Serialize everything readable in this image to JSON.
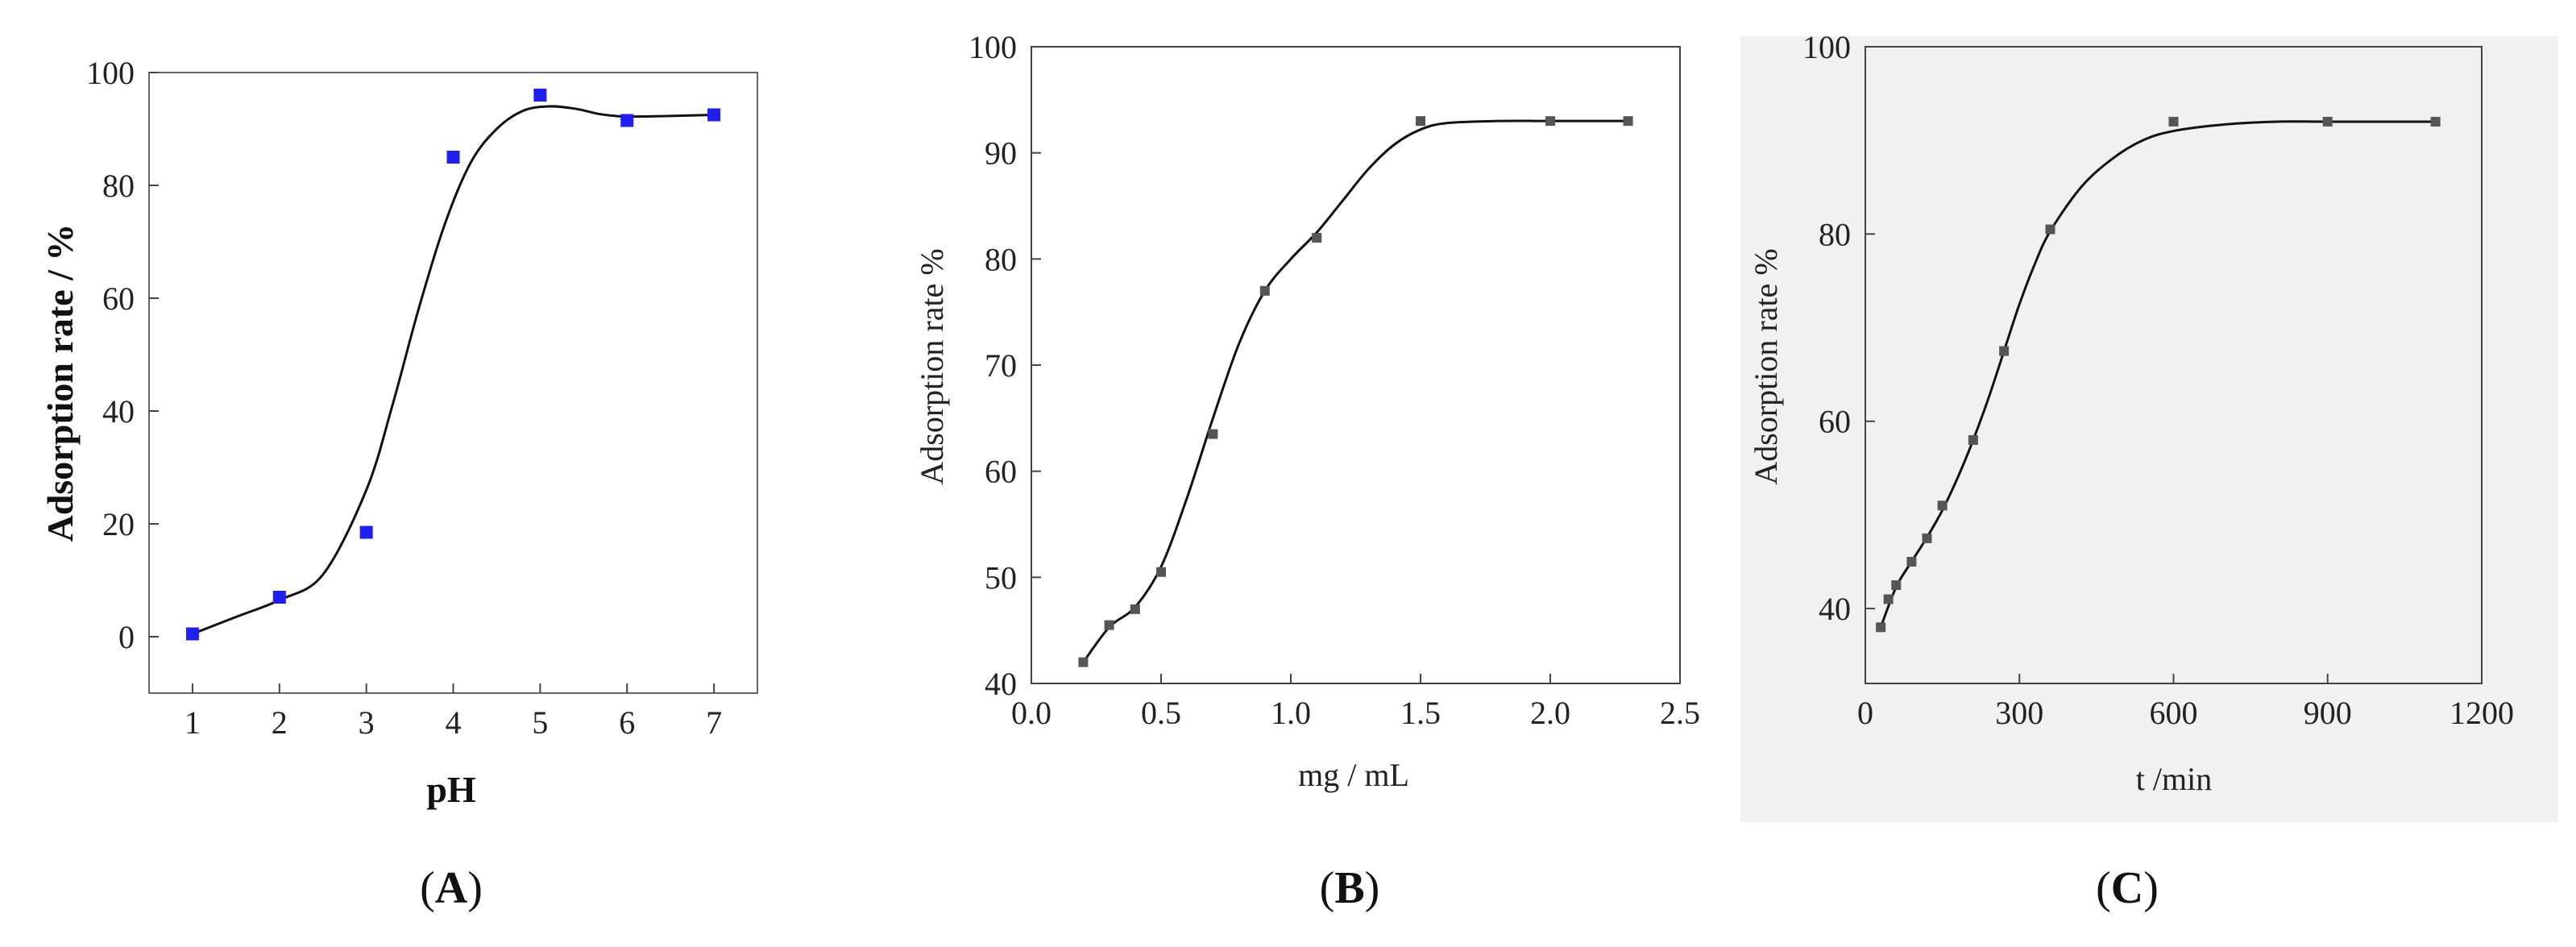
{
  "chart_data": [
    {
      "type": "scatter",
      "caption": "A",
      "xlabel": "pH",
      "ylabel": "Adsorption rate  / %",
      "xlim": [
        0.5,
        7.5
      ],
      "ylim": [
        -10,
        100
      ],
      "xticks": [
        1,
        2,
        3,
        4,
        5,
        6,
        7
      ],
      "yticks": [
        0,
        20,
        40,
        60,
        80,
        100
      ],
      "marker_color": "#1f1ff0",
      "points": {
        "x": [
          1,
          2,
          3,
          4,
          5,
          6,
          7
        ],
        "y": [
          0.5,
          7,
          18.5,
          85,
          96,
          91.5,
          92.5
        ]
      },
      "fit": {
        "x": [
          1,
          1.5,
          2,
          2.5,
          3,
          3.3,
          3.6,
          3.9,
          4.2,
          4.5,
          4.8,
          5.1,
          5.4,
          5.7,
          6,
          6.5,
          7
        ],
        "y": [
          0.5,
          3.5,
          6.5,
          11,
          26,
          41,
          58,
          73,
          84,
          90,
          93.2,
          94,
          93.6,
          92.6,
          92.2,
          92.3,
          92.5
        ]
      }
    },
    {
      "type": "scatter",
      "caption": "B",
      "xlabel": "mg / mL",
      "ylabel": "Adsorption rate %",
      "xlim": [
        0,
        2.5
      ],
      "ylim": [
        40,
        100
      ],
      "xticks": [
        "0.0",
        "0.5",
        "1.0",
        "1.5",
        "2.0",
        "2.5"
      ],
      "yticks": [
        40,
        50,
        60,
        70,
        80,
        90,
        100
      ],
      "marker_color": "#555555",
      "points": {
        "x": [
          0.2,
          0.3,
          0.4,
          0.5,
          0.7,
          0.9,
          1.1,
          1.5,
          2.0,
          2.3
        ],
        "y": [
          42,
          45.5,
          47,
          50.5,
          63.5,
          77,
          82,
          93,
          93,
          93
        ]
      },
      "fit": {
        "x": [
          0.2,
          0.3,
          0.4,
          0.5,
          0.6,
          0.7,
          0.8,
          0.9,
          1.0,
          1.1,
          1.2,
          1.3,
          1.4,
          1.5,
          1.6,
          1.8,
          2.0,
          2.3
        ],
        "y": [
          42,
          45.3,
          47.2,
          51,
          57.5,
          65,
          72,
          77,
          80,
          82.5,
          85.5,
          88.5,
          90.8,
          92.2,
          92.8,
          93,
          93,
          93
        ]
      }
    },
    {
      "type": "scatter",
      "caption": "C",
      "xlabel": "t /min",
      "ylabel": "Adsorption rate %",
      "xlim": [
        0,
        1200
      ],
      "ylim": [
        32,
        100
      ],
      "xticks": [
        0,
        300,
        600,
        900,
        1200
      ],
      "yticks": [
        40,
        60,
        80,
        100
      ],
      "marker_color": "#555555",
      "points": {
        "x": [
          30,
          45,
          60,
          90,
          120,
          150,
          210,
          270,
          360,
          600,
          900,
          1110
        ],
        "y": [
          38,
          41,
          42.5,
          45,
          47.5,
          51,
          58,
          67.5,
          80.5,
          92,
          92,
          92
        ]
      },
      "fit": {
        "x": [
          30,
          60,
          90,
          120,
          150,
          180,
          210,
          240,
          270,
          300,
          330,
          360,
          420,
          480,
          540,
          600,
          700,
          800,
          900,
          1110
        ],
        "y": [
          38,
          42.3,
          45,
          47.6,
          50.5,
          54,
          58,
          62.5,
          67.5,
          72.5,
          76.8,
          80.3,
          85,
          88,
          90,
          91,
          91.7,
          92,
          92,
          92
        ]
      }
    }
  ]
}
